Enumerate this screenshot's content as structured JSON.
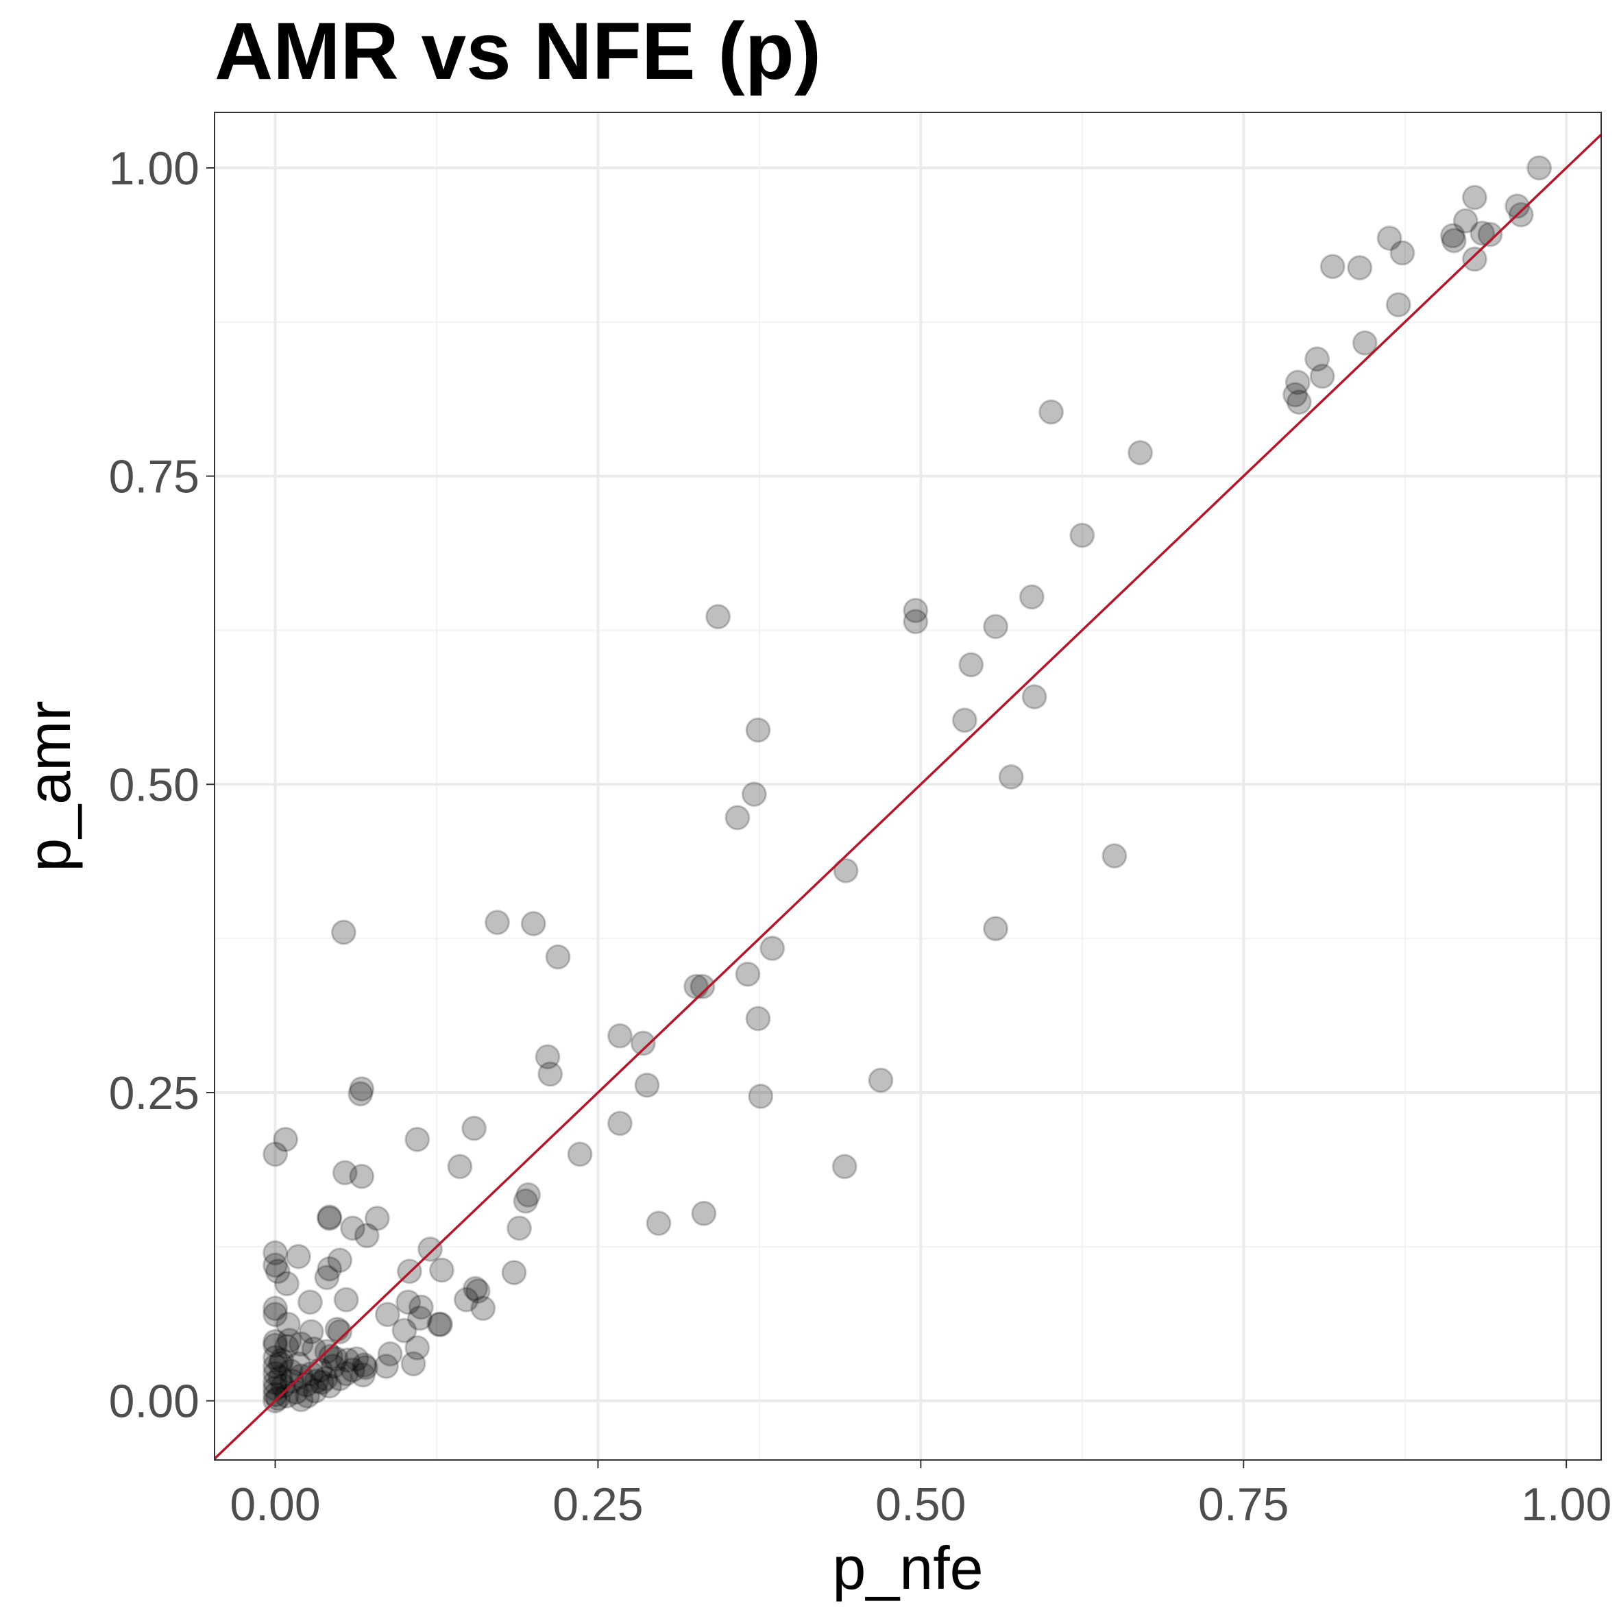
{
  "chart_data": {
    "type": "scatter",
    "title": "AMR vs NFE (p)",
    "xlabel": "p_nfe",
    "ylabel": "p_amr",
    "xlim": [
      -0.047,
      1.027
    ],
    "ylim": [
      -0.048,
      1.045
    ],
    "x_ticks": [
      0,
      0.25,
      0.5,
      0.75,
      1.0
    ],
    "x_tick_labels": [
      "0.00",
      "0.25",
      "0.50",
      "0.75",
      "1.00"
    ],
    "y_ticks": [
      0,
      0.25,
      0.5,
      0.75,
      1.0
    ],
    "y_tick_labels": [
      "0.00",
      "0.25",
      "0.50",
      "0.75",
      "1.00"
    ],
    "grid": true,
    "legend": "none",
    "point_color": "#000000",
    "reference_line": {
      "slope": 1,
      "intercept": 0,
      "color": "#b2182b"
    },
    "points": [
      [
        0.979,
        1.0
      ],
      [
        0.929,
        0.976
      ],
      [
        0.962,
        0.969
      ],
      [
        0.922,
        0.957
      ],
      [
        0.965,
        0.962
      ],
      [
        0.912,
        0.945
      ],
      [
        0.935,
        0.947
      ],
      [
        0.941,
        0.946
      ],
      [
        0.913,
        0.941
      ],
      [
        0.863,
        0.943
      ],
      [
        0.873,
        0.931
      ],
      [
        0.819,
        0.92
      ],
      [
        0.84,
        0.919
      ],
      [
        0.929,
        0.926
      ],
      [
        0.87,
        0.889
      ],
      [
        0.844,
        0.858
      ],
      [
        0.807,
        0.845
      ],
      [
        0.811,
        0.831
      ],
      [
        0.792,
        0.826
      ],
      [
        0.79,
        0.816
      ],
      [
        0.793,
        0.81
      ],
      [
        0.601,
        0.802
      ],
      [
        0.67,
        0.769
      ],
      [
        0.625,
        0.702
      ],
      [
        0.496,
        0.641
      ],
      [
        0.496,
        0.632
      ],
      [
        0.586,
        0.652
      ],
      [
        0.558,
        0.628
      ],
      [
        0.343,
        0.636
      ],
      [
        0.539,
        0.597
      ],
      [
        0.534,
        0.552
      ],
      [
        0.588,
        0.571
      ],
      [
        0.374,
        0.544
      ],
      [
        0.371,
        0.492
      ],
      [
        0.358,
        0.473
      ],
      [
        0.57,
        0.506
      ],
      [
        0.65,
        0.442
      ],
      [
        0.442,
        0.43
      ],
      [
        0.558,
        0.383
      ],
      [
        0.172,
        0.388
      ],
      [
        0.2,
        0.387
      ],
      [
        0.219,
        0.36
      ],
      [
        0.385,
        0.367
      ],
      [
        0.366,
        0.346
      ],
      [
        0.326,
        0.336
      ],
      [
        0.331,
        0.336
      ],
      [
        0.374,
        0.31
      ],
      [
        0.267,
        0.296
      ],
      [
        0.285,
        0.29
      ],
      [
        0.211,
        0.279
      ],
      [
        0.213,
        0.265
      ],
      [
        0.288,
        0.256
      ],
      [
        0.469,
        0.26
      ],
      [
        0.376,
        0.247
      ],
      [
        0.067,
        0.253
      ],
      [
        0.066,
        0.249
      ],
      [
        0.154,
        0.221
      ],
      [
        0.267,
        0.225
      ],
      [
        0.11,
        0.212
      ],
      [
        0.008,
        0.212
      ],
      [
        0.0,
        0.2
      ],
      [
        0.236,
        0.2
      ],
      [
        0.441,
        0.19
      ],
      [
        0.143,
        0.19
      ],
      [
        0.053,
        0.38
      ],
      [
        0.054,
        0.185
      ],
      [
        0.067,
        0.182
      ],
      [
        0.196,
        0.167
      ],
      [
        0.194,
        0.162
      ],
      [
        0.332,
        0.152
      ],
      [
        0.297,
        0.144
      ],
      [
        0.042,
        0.149
      ],
      [
        0.042,
        0.148
      ],
      [
        0.079,
        0.148
      ],
      [
        0.06,
        0.14
      ],
      [
        0.189,
        0.14
      ],
      [
        0.071,
        0.134
      ],
      [
        0.018,
        0.117
      ],
      [
        0.0,
        0.12
      ],
      [
        0.0,
        0.11
      ],
      [
        0.12,
        0.123
      ],
      [
        0.05,
        0.114
      ],
      [
        0.042,
        0.107
      ],
      [
        0.104,
        0.105
      ],
      [
        0.002,
        0.105
      ],
      [
        0.185,
        0.104
      ],
      [
        0.04,
        0.1
      ],
      [
        0.027,
        0.08
      ],
      [
        0.009,
        0.095
      ],
      [
        0.129,
        0.106
      ],
      [
        0.155,
        0.091
      ],
      [
        0.157,
        0.089
      ],
      [
        0.148,
        0.082
      ],
      [
        0.055,
        0.082
      ],
      [
        0.161,
        0.075
      ],
      [
        0.103,
        0.08
      ],
      [
        0.087,
        0.07
      ],
      [
        0.112,
        0.067
      ],
      [
        0.113,
        0.076
      ],
      [
        0.128,
        0.062
      ],
      [
        0.1,
        0.057
      ],
      [
        0.127,
        0.062
      ],
      [
        0.0,
        0.075
      ],
      [
        0.0,
        0.07
      ],
      [
        0.01,
        0.062
      ],
      [
        0.028,
        0.056
      ],
      [
        0.048,
        0.058
      ],
      [
        0.05,
        0.056
      ],
      [
        0.011,
        0.049
      ],
      [
        0.0,
        0.048
      ],
      [
        0.0,
        0.045
      ],
      [
        0.009,
        0.044
      ],
      [
        0.02,
        0.046
      ],
      [
        0.04,
        0.04
      ],
      [
        0.03,
        0.042
      ],
      [
        0.11,
        0.043
      ],
      [
        0.089,
        0.038
      ],
      [
        0.0,
        0.035
      ],
      [
        0.005,
        0.033
      ],
      [
        0.043,
        0.036
      ],
      [
        0.056,
        0.033
      ],
      [
        0.063,
        0.034
      ],
      [
        0.069,
        0.029
      ],
      [
        0.047,
        0.034
      ],
      [
        0.107,
        0.03
      ],
      [
        0.086,
        0.028
      ],
      [
        0.07,
        0.027
      ],
      [
        0.06,
        0.025
      ],
      [
        0.055,
        0.022
      ],
      [
        0.068,
        0.021
      ],
      [
        0.05,
        0.018
      ],
      [
        0.036,
        0.015
      ],
      [
        0.042,
        0.012
      ],
      [
        0.0,
        0.028
      ],
      [
        0.0,
        0.022
      ],
      [
        0.0,
        0.015
      ],
      [
        0.0,
        0.01
      ],
      [
        0.0,
        0.005
      ],
      [
        0.0,
        0.0
      ],
      [
        0.004,
        0.019
      ],
      [
        0.006,
        0.012
      ],
      [
        0.009,
        0.004
      ],
      [
        0.013,
        0.016
      ],
      [
        0.016,
        0.007
      ],
      [
        0.02,
        0.001
      ],
      [
        0.024,
        0.013
      ],
      [
        0.028,
        0.022
      ],
      [
        0.031,
        0.008
      ],
      [
        0.035,
        0.025
      ],
      [
        0.039,
        0.018
      ],
      [
        0.045,
        0.028
      ],
      [
        0.002,
        0.002
      ],
      [
        0.004,
        0.03
      ],
      [
        0.012,
        0.024
      ],
      [
        0.018,
        0.03
      ],
      [
        0.025,
        0.004
      ],
      [
        0.032,
        0.016
      ],
      [
        0.02,
        0.02
      ]
    ]
  }
}
